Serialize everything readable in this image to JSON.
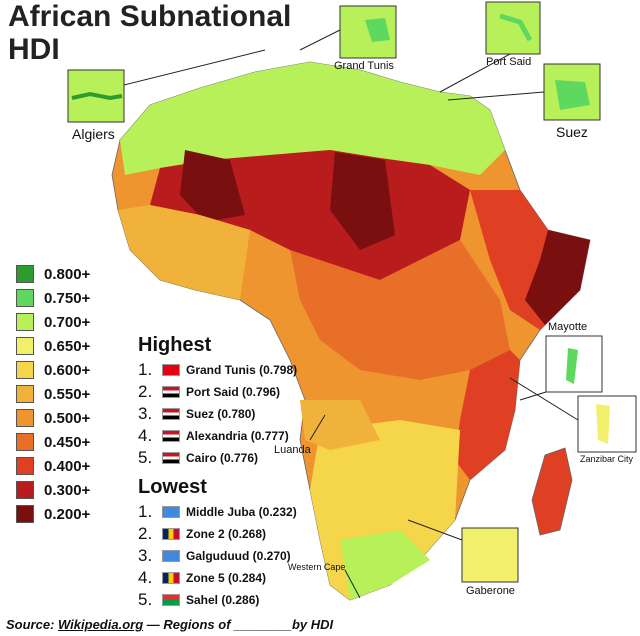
{
  "title": [
    "African Subnational",
    "HDI"
  ],
  "legend": [
    {
      "label": "0.800+",
      "color": "#2e9b2e"
    },
    {
      "label": "0.750+",
      "color": "#5fd85f"
    },
    {
      "label": "0.700+",
      "color": "#b8f05a"
    },
    {
      "label": "0.650+",
      "color": "#f2f06a"
    },
    {
      "label": "0.600+",
      "color": "#f5d54a"
    },
    {
      "label": "0.550+",
      "color": "#f0b23a"
    },
    {
      "label": "0.500+",
      "color": "#ee9530"
    },
    {
      "label": "0.450+",
      "color": "#e86f28"
    },
    {
      "label": "0.400+",
      "color": "#df3f22"
    },
    {
      "label": "0.300+",
      "color": "#b81c1c"
    },
    {
      "label": "0.200+",
      "color": "#7a0f0f"
    }
  ],
  "highest": {
    "heading": "Highest",
    "items": [
      {
        "num": "1.",
        "text": "Grand Tunis (0.798)",
        "flag": "tunisia-flag-icon"
      },
      {
        "num": "2.",
        "text": "Port Said (0.796)",
        "flag": "egypt-flag-icon"
      },
      {
        "num": "3.",
        "text": "Suez (0.780)",
        "flag": "egypt-flag-icon"
      },
      {
        "num": "4.",
        "text": "Alexandria (0.777)",
        "flag": "egypt-flag-icon"
      },
      {
        "num": "5.",
        "text": "Cairo (0.776)",
        "flag": "egypt-flag-icon"
      }
    ]
  },
  "lowest": {
    "heading": "Lowest",
    "items": [
      {
        "num": "1.",
        "text": "Middle Juba (0.232)",
        "flag": "somalia-flag-icon"
      },
      {
        "num": "2.",
        "text": "Zone 2 (0.268)",
        "flag": "chad-flag-icon"
      },
      {
        "num": "3.",
        "text": "Galguduud (0.270)",
        "flag": "somalia-flag-icon"
      },
      {
        "num": "4.",
        "text": "Zone 5 (0.284)",
        "flag": "chad-flag-icon"
      },
      {
        "num": "5.",
        "text": "Sahel (0.286)",
        "flag": "burkina-faso-flag-icon"
      }
    ]
  },
  "insets": {
    "algiers": "Algiers",
    "grand_tunis": "Grand Tunis",
    "port_said": "Port Said",
    "suez": "Suez",
    "mayotte": "Mayotte",
    "zanzibar": "Zanzibar City",
    "gaberone": "Gaberone",
    "luanda": "Luanda",
    "western_cape": "Western Cape"
  },
  "source": {
    "prefix": "Source: ",
    "link": "Wikipedia.org",
    "suffix": " — Regions of ________by HDI"
  }
}
